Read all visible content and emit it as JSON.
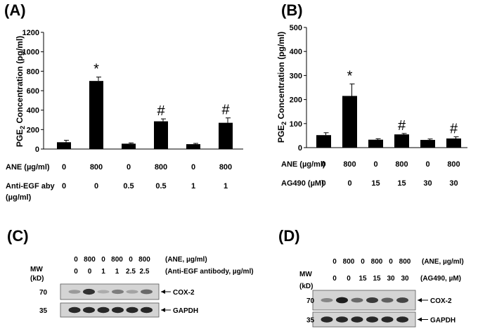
{
  "panels": {
    "A": {
      "label": "(A)"
    },
    "B": {
      "label": "(B)"
    },
    "C": {
      "label": "(C)"
    },
    "D": {
      "label": "(D)"
    }
  },
  "chart_data": [
    {
      "id": "A",
      "type": "bar",
      "ylabel_main": "PGE",
      "ylabel_sub": "2",
      "ylabel_rest": " Concentration (pg/ml)",
      "ylim": [
        0,
        1200
      ],
      "yticks": [
        0,
        200,
        400,
        600,
        800,
        1000,
        1200
      ],
      "values": [
        70,
        700,
        55,
        285,
        50,
        270
      ],
      "errors": [
        20,
        40,
        8,
        25,
        8,
        50
      ],
      "markers": [
        "",
        "*",
        "",
        "#",
        "",
        "#"
      ],
      "conditions": [
        {
          "label": "ANE (µg/ml)",
          "values": [
            "0",
            "800",
            "0",
            "800",
            "0",
            "800"
          ]
        },
        {
          "label": "Anti-EGF aby",
          "label2": "(µg/ml)",
          "values": [
            "0",
            "0",
            "0.5",
            "0.5",
            "1",
            "1"
          ]
        }
      ]
    },
    {
      "id": "B",
      "type": "bar",
      "ylabel_main": "PGE",
      "ylabel_sub": "2",
      "ylabel_rest": " Concentration (pg/ml)",
      "ylim": [
        0,
        500
      ],
      "yticks": [
        0,
        100,
        200,
        300,
        400,
        500
      ],
      "values": [
        52,
        215,
        33,
        55,
        32,
        38
      ],
      "errors": [
        10,
        50,
        4,
        4,
        4,
        7
      ],
      "markers": [
        "",
        "*",
        "",
        "#",
        "",
        "#"
      ],
      "conditions": [
        {
          "label": "ANE (µg/ml)",
          "values": [
            "0",
            "800",
            "0",
            "800",
            "0",
            "800"
          ]
        },
        {
          "label": "AG490 (µM)",
          "values": [
            "0",
            "0",
            "15",
            "15",
            "30",
            "30"
          ]
        }
      ]
    }
  ],
  "blots": {
    "C": {
      "row1": {
        "values": [
          "0",
          "800",
          "0",
          "800",
          "0",
          "800"
        ],
        "label": "(ANE, µg/ml)"
      },
      "row2": {
        "values": [
          "0",
          "0",
          "1",
          "1",
          "2.5",
          "2.5"
        ],
        "label": "(Anti-EGF antibody, µg/ml)"
      },
      "mw_label": "MW",
      "kd_label": "(kD)",
      "bands": [
        {
          "mw": "70",
          "name": "COX-2",
          "intensities": [
            0.3,
            0.85,
            0.2,
            0.45,
            0.25,
            0.55
          ]
        },
        {
          "mw": "35",
          "name": "GAPDH",
          "intensities": [
            0.9,
            0.9,
            0.9,
            0.9,
            0.9,
            0.9
          ]
        }
      ]
    },
    "D": {
      "row1": {
        "values": [
          "0",
          "800",
          "0",
          "800",
          "0",
          "800"
        ],
        "label": "(ANE, µg/ml)"
      },
      "row2": {
        "values": [
          "0",
          "0",
          "15",
          "15",
          "30",
          "30"
        ],
        "label": "(AG490, µM)"
      },
      "mw_label": "MW",
      "kd_label": "(kD)",
      "bands": [
        {
          "mw": "70",
          "name": "COX-2",
          "intensities": [
            0.4,
            0.95,
            0.55,
            0.8,
            0.6,
            0.75
          ]
        },
        {
          "mw": "35",
          "name": "GAPDH",
          "intensities": [
            0.9,
            0.9,
            0.9,
            0.9,
            0.9,
            0.9
          ]
        }
      ]
    }
  }
}
